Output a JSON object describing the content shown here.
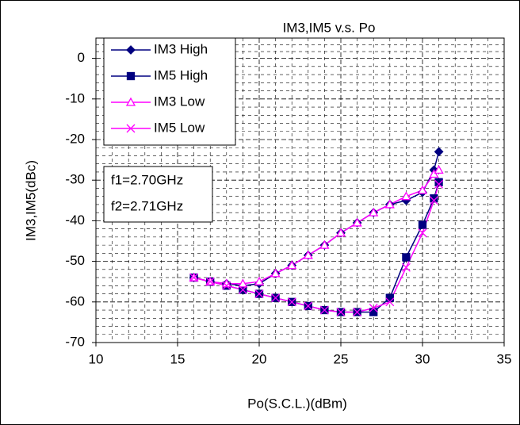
{
  "chart_data": {
    "type": "line",
    "title": "IM3,IM5  v.s.  Po",
    "x_label": "Po(S.C.L.)(dBm)",
    "y_label": "IM3,IM5(dBc)",
    "x": [
      16,
      17,
      18,
      19,
      20,
      21,
      22,
      23,
      24,
      25,
      26,
      27,
      28,
      29,
      30,
      30.7,
      31
    ],
    "series": [
      {
        "name": "IM3 High",
        "color": "#000080",
        "marker": "diamond",
        "values": [
          -54,
          -55,
          -55.5,
          -56,
          -55.5,
          -53,
          -51,
          -48.5,
          -46,
          -43,
          -40.5,
          -38,
          -36,
          -35,
          -33,
          -27.5,
          -23
        ]
      },
      {
        "name": "IM5 High",
        "color": "#000080",
        "marker": "square",
        "values": [
          -54,
          -55,
          -56,
          -57,
          -58,
          -59,
          -60,
          -61,
          -62,
          -62.5,
          -62.5,
          -62.5,
          -59,
          -49,
          -41,
          -34.5,
          -30.5
        ]
      },
      {
        "name": "IM3 Low",
        "color": "#ff00ff",
        "marker": "triangle",
        "values": [
          -54,
          -55,
          -55.5,
          -55.5,
          -55,
          -53,
          -51,
          -48.5,
          -46,
          -43,
          -40.5,
          -38,
          -36,
          -34,
          -32.5,
          -28.5,
          -27.5
        ]
      },
      {
        "name": "IM5 Low",
        "color": "#ff00ff",
        "marker": "x",
        "values": [
          -54,
          -55,
          -56,
          -57,
          -58,
          -59,
          -60,
          -61,
          -62,
          -62.5,
          -62.5,
          -61.5,
          -60,
          -51.5,
          -43,
          -35,
          -31
        ]
      }
    ],
    "annotations": [
      "f1=2.70GHz",
      "f2=2.71GHz"
    ],
    "xlim": [
      10,
      35
    ],
    "xticks": [
      10,
      15,
      20,
      25,
      30,
      35
    ],
    "ylim": [
      -70,
      5
    ],
    "yticks": [
      0,
      -10,
      -20,
      -30,
      -40,
      -50,
      -60,
      -70
    ],
    "grid": true
  }
}
